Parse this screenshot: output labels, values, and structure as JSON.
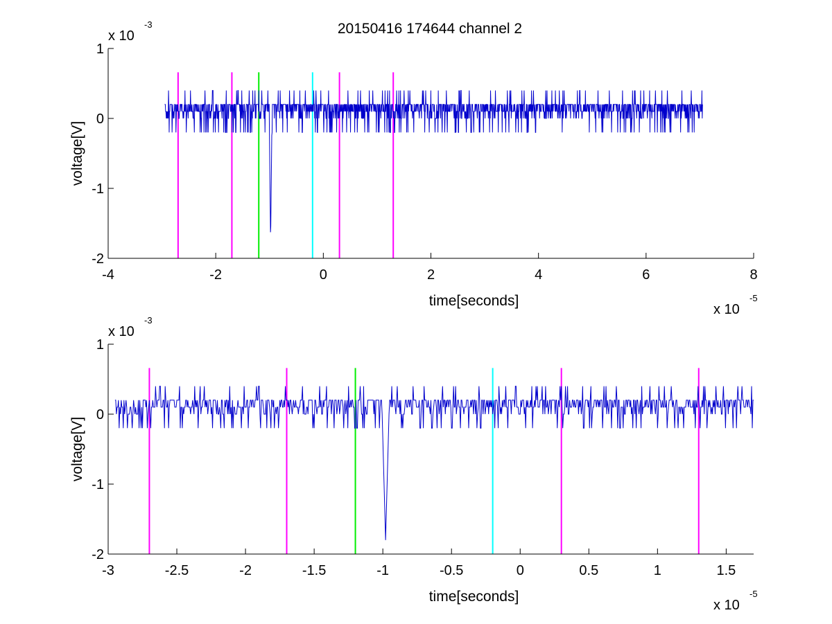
{
  "title": "20150416 174644 channel 2",
  "colors": {
    "signal": "#0000cc",
    "magenta": "#ff00ff",
    "green": "#00ee00",
    "cyan": "#00ffff",
    "axes": "#000000"
  },
  "charts": [
    {
      "type": "line",
      "xlabel": "time[seconds]",
      "ylabel": "voltage[V]",
      "xlim": [
        -4e-05,
        8e-05
      ],
      "ylim": [
        -0.002,
        0.001
      ],
      "xticks": [
        -4e-05,
        -2e-05,
        0,
        2e-05,
        4e-05,
        6e-05,
        8e-05
      ],
      "xtick_labels": [
        "-4",
        "-2",
        "0",
        "2",
        "4",
        "6",
        "8"
      ],
      "yticks": [
        -0.002,
        -0.001,
        0,
        0.001
      ],
      "ytick_labels": [
        "-2",
        "-1",
        "0",
        "1"
      ],
      "x_exponent": {
        "base": "x 10",
        "power": "-5"
      },
      "y_exponent": {
        "base": "x 10",
        "power": "-3"
      },
      "signal": {
        "x_start": -2.95e-05,
        "x_end": 7.05e-05,
        "baseline": 0.0001,
        "noise_levels": [
          0.0,
          0.0001,
          0.0002,
          0.0004,
          -0.0002
        ],
        "spike_at": -9.8e-06,
        "spike_min": -0.0018
      },
      "markers": [
        {
          "x": -2.7e-05,
          "color": "magenta",
          "y_range": [
            -0.002,
            0.00066
          ]
        },
        {
          "x": -1.7e-05,
          "color": "magenta",
          "y_range": [
            -0.002,
            0.00066
          ]
        },
        {
          "x": -1.2e-05,
          "color": "green",
          "y_range": [
            -0.002,
            0.00066
          ]
        },
        {
          "x": -2e-06,
          "color": "cyan",
          "y_range": [
            -0.002,
            0.00066
          ]
        },
        {
          "x": 3e-06,
          "color": "magenta",
          "y_range": [
            -0.002,
            0.00066
          ]
        },
        {
          "x": 1.3e-05,
          "color": "magenta",
          "y_range": [
            -0.002,
            0.00066
          ]
        }
      ]
    },
    {
      "type": "line",
      "xlabel": "time[seconds]",
      "ylabel": "voltage[V]",
      "xlim": [
        -3e-05,
        1.7e-05
      ],
      "ylim": [
        -0.002,
        0.001
      ],
      "xticks": [
        -3e-05,
        -2.5e-05,
        -2e-05,
        -1.5e-05,
        -1e-05,
        -5e-06,
        0,
        5e-06,
        1e-05,
        1.5e-05
      ],
      "xtick_labels": [
        "-3",
        "-2.5",
        "-2",
        "-1.5",
        "-1",
        "-0.5",
        "0",
        "0.5",
        "1",
        "1.5"
      ],
      "yticks": [
        -0.002,
        -0.001,
        0,
        0.001
      ],
      "ytick_labels": [
        "-2",
        "-1",
        "0",
        "1"
      ],
      "x_exponent": {
        "base": "x 10",
        "power": "-5"
      },
      "y_exponent": {
        "base": "x 10",
        "power": "-3"
      },
      "signal": {
        "x_start": -2.95e-05,
        "x_end": 1.7e-05,
        "baseline": 0.0001,
        "noise_levels": [
          0.0,
          0.0001,
          0.0002,
          0.0004,
          -0.0002
        ],
        "spike_at": -9.8e-06,
        "spike_min": -0.0018
      },
      "markers": [
        {
          "x": -2.7e-05,
          "color": "magenta",
          "y_range": [
            -0.002,
            0.00066
          ]
        },
        {
          "x": -1.7e-05,
          "color": "magenta",
          "y_range": [
            -0.002,
            0.00066
          ]
        },
        {
          "x": -1.2e-05,
          "color": "green",
          "y_range": [
            -0.002,
            0.00066
          ]
        },
        {
          "x": -2e-06,
          "color": "cyan",
          "y_range": [
            -0.002,
            0.00066
          ]
        },
        {
          "x": 3e-06,
          "color": "magenta",
          "y_range": [
            -0.002,
            0.00066
          ]
        },
        {
          "x": 1.3e-05,
          "color": "magenta",
          "y_range": [
            -0.002,
            0.00066
          ]
        }
      ]
    }
  ]
}
